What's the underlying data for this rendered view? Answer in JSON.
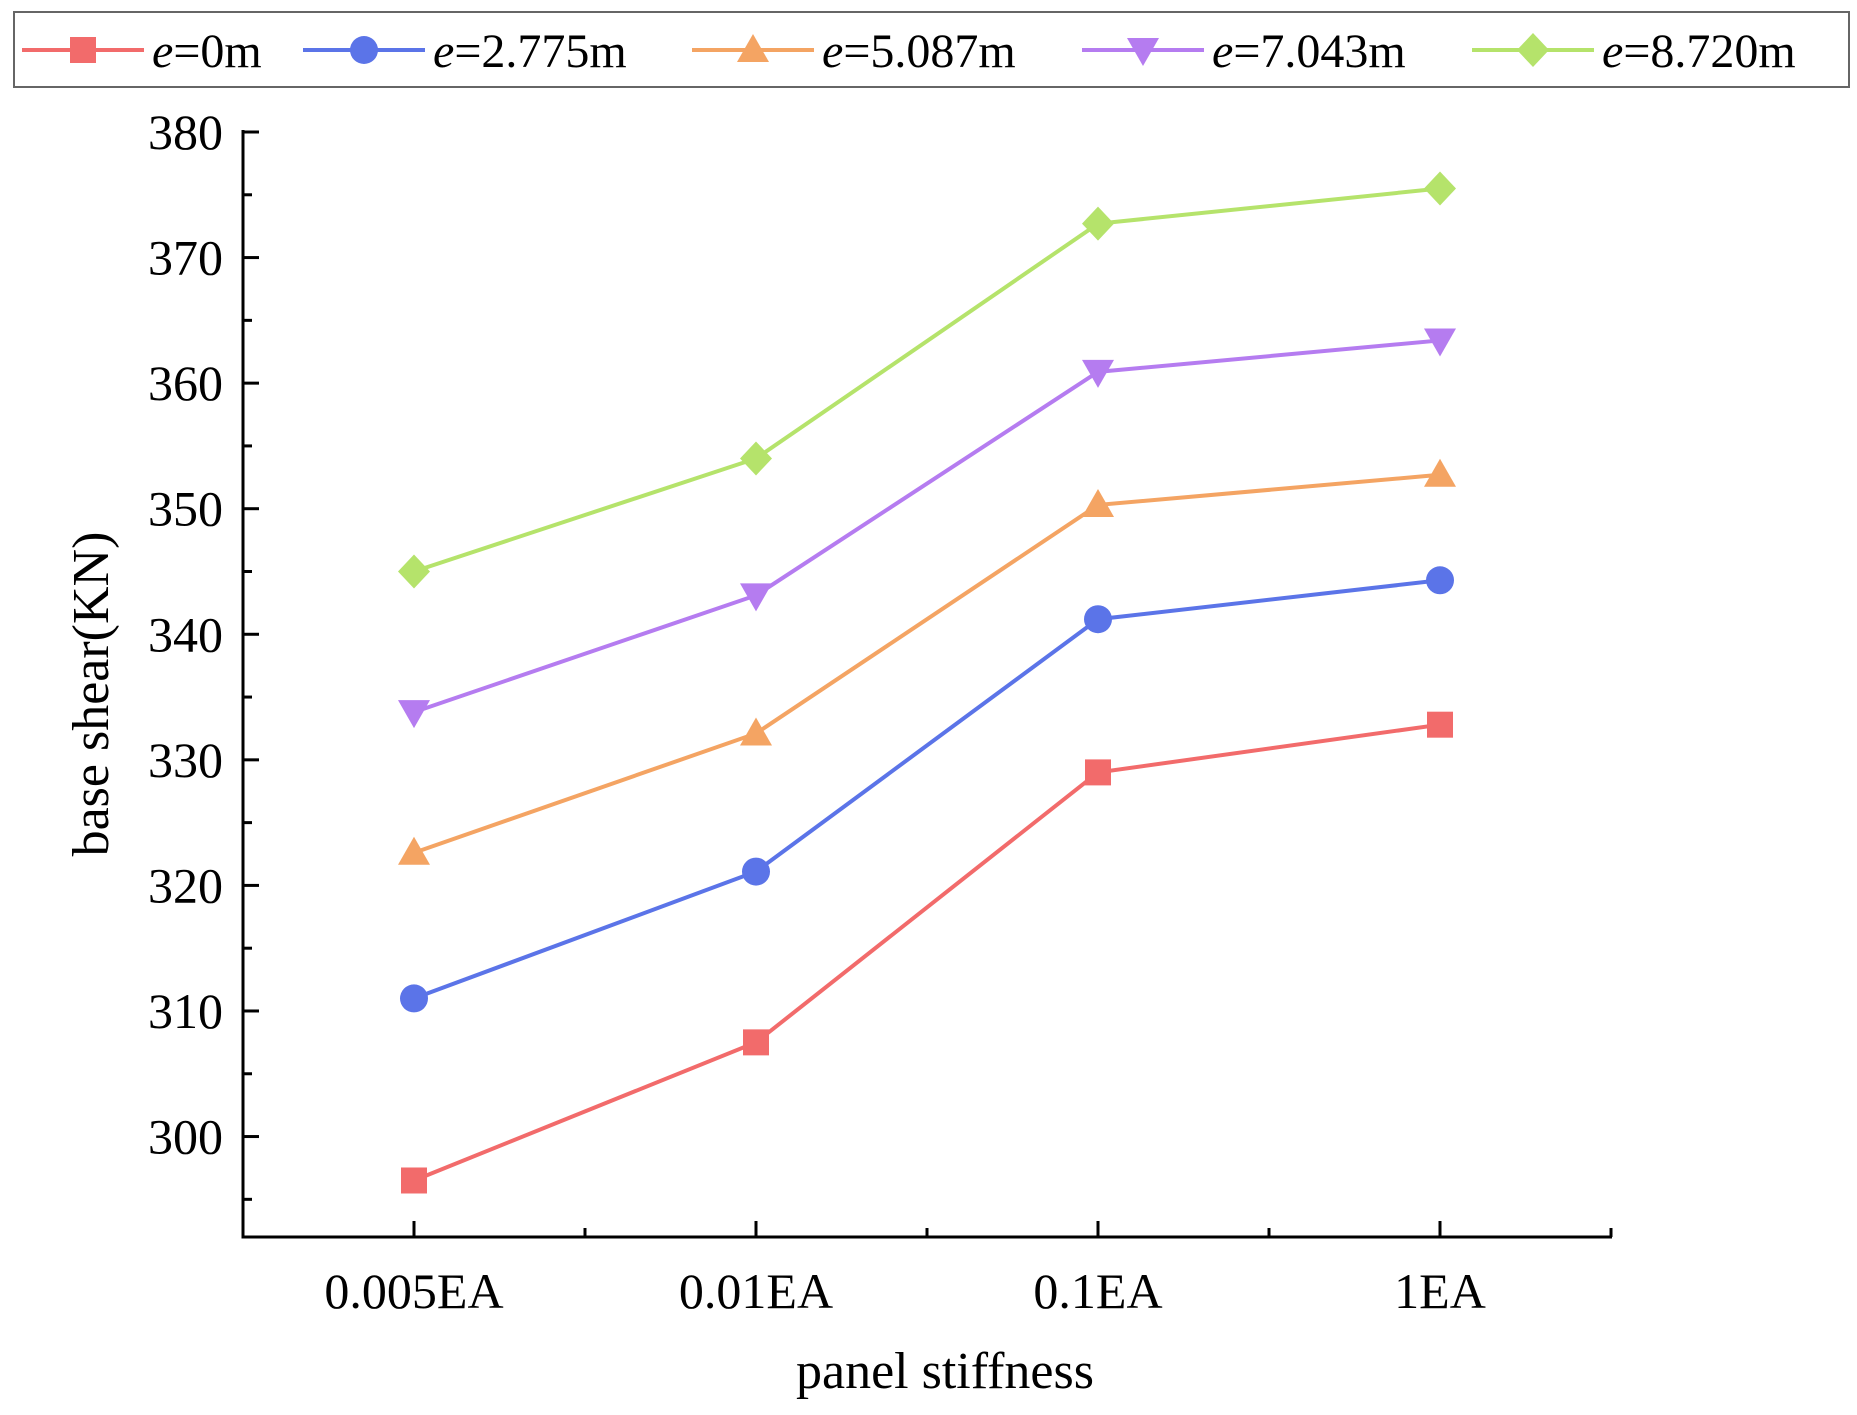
{
  "chart_data": {
    "type": "line",
    "title": "",
    "xlabel": "panel stiffness",
    "ylabel": "base shear(KN)",
    "categories": [
      "0.005EA",
      "0.01EA",
      "0.1EA",
      "1EA"
    ],
    "ylim": [
      292,
      380
    ],
    "yticks": [
      300,
      310,
      320,
      330,
      340,
      350,
      360,
      370,
      380
    ],
    "grid": false,
    "legend_position": "top",
    "series": [
      {
        "legend_prefix": "e",
        "legend_suffix": "=0m",
        "marker": "square",
        "color": "#f26b6b",
        "values": [
          296.5,
          307.5,
          329.0,
          332.8
        ]
      },
      {
        "legend_prefix": "e",
        "legend_suffix": "=2.775m",
        "marker": "circle",
        "color": "#5b74e8",
        "values": [
          311.0,
          321.1,
          341.2,
          344.3
        ]
      },
      {
        "legend_prefix": "e",
        "legend_suffix": "=5.087m",
        "marker": "triangle-up",
        "color": "#f4a463",
        "values": [
          322.6,
          332.1,
          350.3,
          352.7
        ]
      },
      {
        "legend_prefix": "e",
        "legend_suffix": "=7.043m",
        "marker": "triangle-down",
        "color": "#b57cf0",
        "values": [
          333.8,
          343.1,
          360.9,
          363.4
        ]
      },
      {
        "legend_prefix": "e",
        "legend_suffix": "=8.720m",
        "marker": "diamond",
        "color": "#b5e36b",
        "values": [
          345.0,
          354.0,
          372.7,
          375.5
        ]
      }
    ]
  }
}
